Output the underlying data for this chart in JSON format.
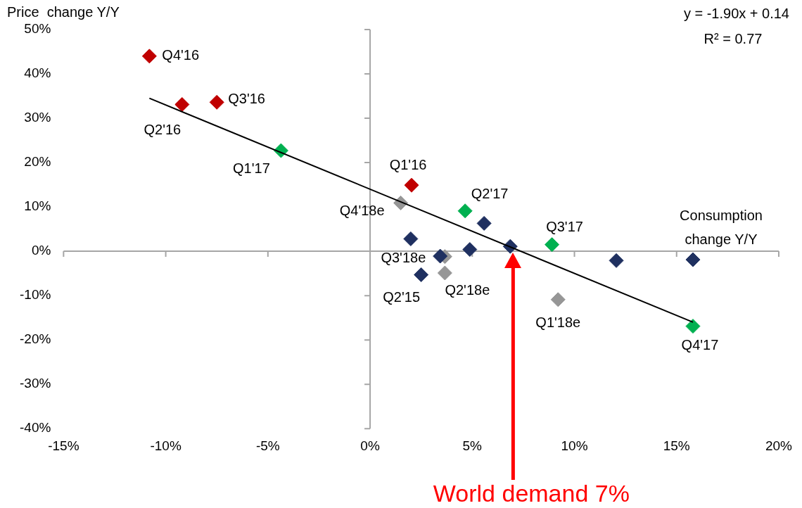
{
  "chart_data": {
    "type": "scatter",
    "ylabel": "Price  change Y/Y",
    "xlabel": "Consumption change Y/Y",
    "marker": "diamond",
    "legend": false,
    "xlim": [
      -15,
      20
    ],
    "ylim": [
      -40,
      50
    ],
    "xticks": [
      {
        "value": -15,
        "label": "-15%"
      },
      {
        "value": -10,
        "label": "-10%"
      },
      {
        "value": -5,
        "label": "-5%"
      },
      {
        "value": 0,
        "label": "0%"
      },
      {
        "value": 5,
        "label": "5%"
      },
      {
        "value": 10,
        "label": "10%"
      },
      {
        "value": 15,
        "label": "15%"
      },
      {
        "value": 20,
        "label": "20%"
      }
    ],
    "yticks": [
      {
        "value": -40,
        "label": "-40%"
      },
      {
        "value": -30,
        "label": "-30%"
      },
      {
        "value": -20,
        "label": "-20%"
      },
      {
        "value": -10,
        "label": "-10%"
      },
      {
        "value": 0,
        "label": "0%"
      },
      {
        "value": 10,
        "label": "10%"
      },
      {
        "value": 20,
        "label": "20%"
      },
      {
        "value": 30,
        "label": "30%"
      },
      {
        "value": 40,
        "label": "40%"
      },
      {
        "value": 50,
        "label": "50%"
      }
    ],
    "series": [
      {
        "color": "#1f3060",
        "x": [
          1.99,
          4.88,
          6.86,
          5.58,
          3.43,
          2.5,
          12.05,
          15.8
        ],
        "values": [
          2.8,
          0.4,
          1.1,
          6.3,
          -1.1,
          -5.3,
          -2.1,
          -1.9
        ]
      },
      {
        "color": "#c00000",
        "x": [
          -10.8,
          -9.2,
          -7.5,
          2.03
        ],
        "values": [
          44,
          33.1,
          33.6,
          14.9
        ]
      },
      {
        "color": "#00b050",
        "x": [
          -4.36,
          4.65,
          8.9,
          15.8
        ],
        "values": [
          22.7,
          9.1,
          1.5,
          -16.9
        ]
      },
      {
        "color": "#969696",
        "x": [
          1.5,
          3.66,
          3.66,
          9.2
        ],
        "values": [
          10.9,
          -1.2,
          -4.9,
          -10.9
        ]
      },
      {
        "type": "line",
        "marker": "none",
        "color": "#000000",
        "x": [
          -10.8,
          15.8
        ],
        "values": [
          34.5,
          -16.0
        ]
      }
    ],
    "annotations": [
      "y = -1.90x + 0.14",
      "R² = 0.77",
      {
        "text": "Q4'16",
        "x": -10.8,
        "y": 44
      },
      {
        "text": "Q2'16",
        "x": -9.2,
        "y": 33.1
      },
      {
        "text": "Q3'16",
        "x": -7.5,
        "y": 33.6
      },
      {
        "text": "Q1'17",
        "x": -4.36,
        "y": 22.7
      },
      {
        "text": "Q1'16",
        "x": 2.03,
        "y": 14.9
      },
      {
        "text": "Q4'18e",
        "x": 1.5,
        "y": 10.9
      },
      {
        "text": "Q2'17",
        "x": 4.65,
        "y": 9.1
      },
      {
        "text": "Q3'17",
        "x": 8.9,
        "y": 1.5
      },
      {
        "text": "Q3'18e",
        "x": 3.66,
        "y": -1.2
      },
      {
        "text": "Q2'15",
        "x": 2.5,
        "y": -5.3
      },
      {
        "text": "Q2'18e",
        "x": 3.66,
        "y": -4.9
      },
      {
        "text": "Q1'18e",
        "x": 9.2,
        "y": -10.9
      },
      {
        "text": "Q4'17",
        "x": 15.8,
        "y": -16.9
      }
    ],
    "ref_lines": [
      {
        "axis": "x",
        "value": 7,
        "label": "World demand 7%",
        "color": "#ff0000"
      }
    ]
  }
}
